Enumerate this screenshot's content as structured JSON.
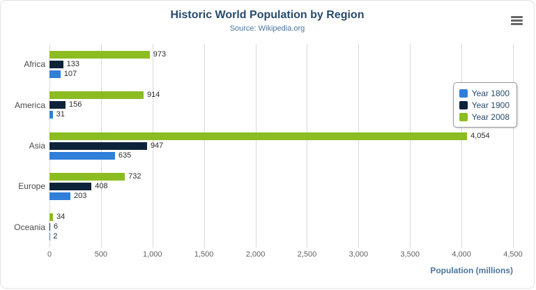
{
  "header": {
    "export_menu_icon": "hamburger-icon"
  },
  "colors": {
    "title": "#274b6d",
    "subtitle": "#4d759e",
    "axis_title": "#4d759e",
    "gridline": "#d9d9d9",
    "data_label": "#2b2b2b"
  },
  "chart_data": {
    "type": "bar",
    "title": "Historic World Population by Region",
    "subtitle": "Source: Wikipedia.org",
    "categories": [
      "Africa",
      "America",
      "Asia",
      "Europe",
      "Oceania"
    ],
    "series": [
      {
        "name": "Year 1800",
        "color": "#2f7ed8",
        "values": [
          107,
          31,
          635,
          203,
          2
        ]
      },
      {
        "name": "Year 1900",
        "color": "#0d233a",
        "values": [
          133,
          156,
          947,
          408,
          6
        ]
      },
      {
        "name": "Year 2008",
        "color": "#8bbc21",
        "values": [
          973,
          914,
          4054,
          732,
          34
        ]
      }
    ],
    "bar_display_order": [
      "Year 2008",
      "Year 1900",
      "Year 1800"
    ],
    "xlabel": "Population (millions)",
    "ylabel": "",
    "xlim": [
      0,
      4500
    ],
    "xticks": [
      0,
      500,
      1000,
      1500,
      2000,
      2500,
      3000,
      3500,
      4000,
      4500
    ],
    "grid": true,
    "legend_position": "right"
  }
}
